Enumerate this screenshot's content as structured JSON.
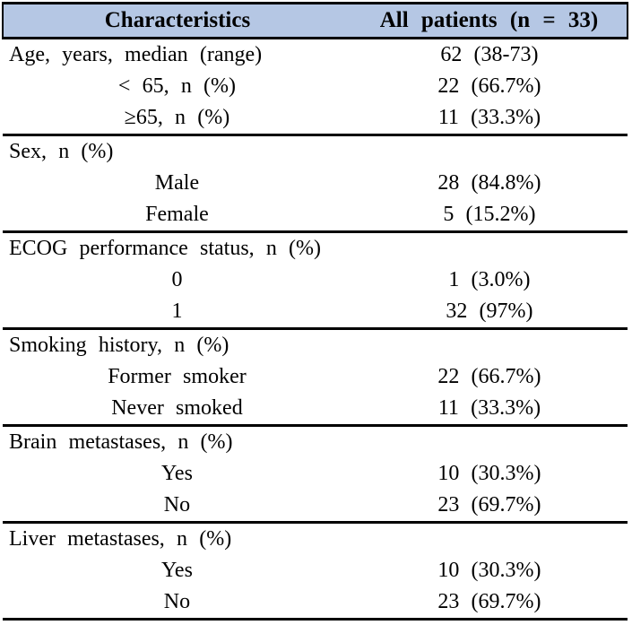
{
  "table": {
    "title_semantic": "patient-baseline-characteristics",
    "colors": {
      "header_bg": "#B5C7E4",
      "rule": "#000000",
      "text": "#000000",
      "page_bg": "#FFFFFF"
    },
    "header": {
      "col1": "Characteristics",
      "col2": "All patients (n = 33)"
    },
    "rows": [
      {
        "label": "Age, years, median (range)",
        "value": "62 (38-73)",
        "indent": false,
        "section_end": false
      },
      {
        "label": "< 65, n (%)",
        "value": "22 (66.7%)",
        "indent": true,
        "section_end": false
      },
      {
        "label": "≥65, n (%)",
        "value": "11 (33.3%)",
        "indent": true,
        "section_end": true
      },
      {
        "label": "Sex, n (%)",
        "value": "",
        "indent": false,
        "section_end": false
      },
      {
        "label": "Male",
        "value": "28 (84.8%)",
        "indent": true,
        "section_end": false
      },
      {
        "label": "Female",
        "value": "5 (15.2%)",
        "indent": true,
        "section_end": true
      },
      {
        "label": "ECOG performance status, n (%)",
        "value": "",
        "indent": false,
        "section_end": false
      },
      {
        "label": "0",
        "value": "1 (3.0%)",
        "indent": true,
        "section_end": false
      },
      {
        "label": "1",
        "value": "32 (97%)",
        "indent": true,
        "section_end": true
      },
      {
        "label": "Smoking history, n (%)",
        "value": "",
        "indent": false,
        "section_end": false
      },
      {
        "label": "Former smoker",
        "value": "22 (66.7%)",
        "indent": true,
        "section_end": false
      },
      {
        "label": "Never smoked",
        "value": "11 (33.3%)",
        "indent": true,
        "section_end": true
      },
      {
        "label": "Brain metastases, n (%)",
        "value": "",
        "indent": false,
        "section_end": false
      },
      {
        "label": "Yes",
        "value": "10 (30.3%)",
        "indent": true,
        "section_end": false
      },
      {
        "label": "No",
        "value": "23 (69.7%)",
        "indent": true,
        "section_end": true
      },
      {
        "label": "Liver metastases, n (%)",
        "value": "",
        "indent": false,
        "section_end": false
      },
      {
        "label": "Yes",
        "value": "10 (30.3%)",
        "indent": true,
        "section_end": false
      },
      {
        "label": "No",
        "value": "23 (69.7%)",
        "indent": true,
        "section_end": true
      }
    ]
  }
}
